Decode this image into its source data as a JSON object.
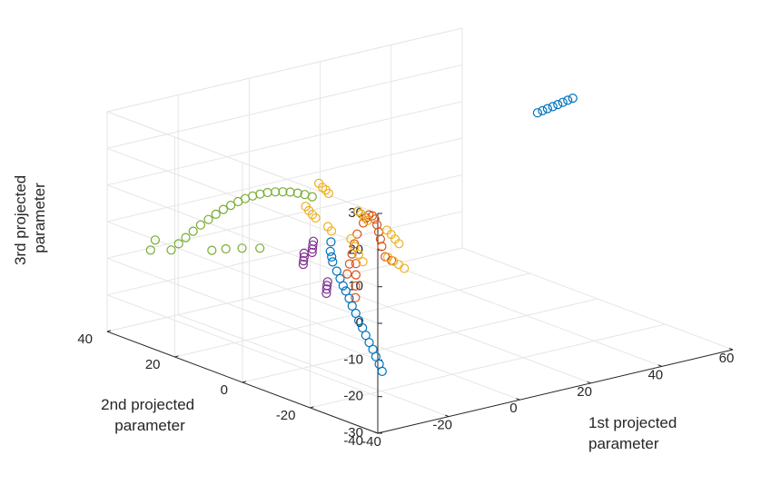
{
  "chart_data": {
    "type": "scatter",
    "title": "",
    "xlabel": [
      "1st projected",
      "parameter"
    ],
    "ylabel": [
      "2nd projected",
      "parameter"
    ],
    "zlabel": [
      "3rd projected",
      "parameter"
    ],
    "xlim": [
      -40,
      60
    ],
    "ylim": [
      -40,
      40
    ],
    "zlim": [
      -30,
      30
    ],
    "xticks": [
      -40,
      -20,
      0,
      20,
      40,
      60
    ],
    "yticks": [
      -40,
      -20,
      0,
      20,
      40
    ],
    "zticks": [
      -30,
      -20,
      -10,
      0,
      10,
      20,
      30
    ],
    "grid": true,
    "legend": "none",
    "marker": "open-circle",
    "series": [
      {
        "color": "#0072BD",
        "points": [
          [
            -12.8,
            2.4,
            1.3
          ],
          [
            -12.7,
            2.7,
            -1.4
          ],
          [
            -12.5,
            2.5,
            -2.9
          ],
          [
            -12.6,
            2.1,
            -4.1
          ],
          [
            -12.6,
            0.9,
            -6.2
          ],
          [
            -12.6,
            -0.1,
            -7.9
          ],
          [
            -12.8,
            -1.2,
            -9.4
          ],
          [
            -12.9,
            -2.1,
            -10.5
          ],
          [
            -13.2,
            -3.4,
            -12.0
          ],
          [
            -13.5,
            -4.6,
            -13.6
          ],
          [
            -13.7,
            -5.9,
            -15.1
          ],
          [
            -14.0,
            -7.1,
            -16.6
          ],
          [
            -14.2,
            -8.4,
            -18.1
          ],
          [
            -14.5,
            -9.7,
            -19.6
          ],
          [
            -14.7,
            -10.9,
            -21.1
          ],
          [
            -14.9,
            -12.2,
            -22.5
          ],
          [
            -15.2,
            -13.4,
            -24.0
          ],
          [
            -15.5,
            -14.7,
            -25.5
          ],
          [
            -15.8,
            -15.9,
            -27.0
          ],
          [
            45.0,
            2.0,
            23.5
          ],
          [
            46.5,
            2.1,
            23.7
          ],
          [
            48.0,
            2.2,
            23.9
          ],
          [
            49.5,
            2.2,
            24.1
          ],
          [
            51.0,
            2.3,
            24.3
          ],
          [
            52.5,
            2.4,
            24.5
          ],
          [
            54.0,
            2.5,
            24.7
          ],
          [
            55.5,
            2.6,
            24.9
          ]
        ]
      },
      {
        "color": "#D95319",
        "points": [
          [
            2.9,
            9.3,
            0.5
          ],
          [
            3.9,
            9.5,
            1.6
          ],
          [
            4.9,
            9.7,
            2.1
          ],
          [
            5.9,
            9.8,
            1.6
          ],
          [
            6.8,
            10.0,
            0.4
          ],
          [
            7.3,
            9.9,
            -1.2
          ],
          [
            7.5,
            9.6,
            -3.1
          ],
          [
            7.7,
            9.3,
            -5.0
          ],
          [
            7.9,
            9.1,
            -7.0
          ],
          [
            2.3,
            10.5,
            -2.8
          ],
          [
            2.0,
            11.0,
            -5.6
          ],
          [
            1.7,
            11.4,
            -8.4
          ],
          [
            1.4,
            11.8,
            -11.2
          ],
          [
            1.1,
            12.2,
            -14.0
          ],
          [
            -0.9,
            7.5,
            -9.1
          ],
          [
            -1.2,
            7.2,
            -12.0
          ],
          [
            -1.5,
            7.0,
            -14.9
          ],
          [
            -1.8,
            6.7,
            -17.9
          ],
          [
            8.5,
            8.7,
            -9.8
          ],
          [
            9.4,
            7.8,
            -10.7
          ]
        ]
      },
      {
        "color": "#EDB120",
        "points": [
          [
            3.8,
            23.4,
            6.2
          ],
          [
            5.1,
            23.7,
            4.7
          ],
          [
            6.4,
            24.1,
            3.6
          ],
          [
            7.6,
            24.5,
            2.2
          ],
          [
            -6.7,
            16.3,
            4.8
          ],
          [
            -5.4,
            16.7,
            3.2
          ],
          [
            -4.1,
            17.0,
            1.7
          ],
          [
            -2.9,
            17.3,
            0.4
          ],
          [
            9.1,
            17.4,
            -0.5
          ],
          [
            10.4,
            17.8,
            -1.7
          ],
          [
            11.6,
            18.2,
            -3.0
          ],
          [
            12.9,
            18.5,
            -4.3
          ],
          [
            14.6,
            14.6,
            -6.0
          ],
          [
            15.6,
            14.4,
            -7.3
          ],
          [
            16.5,
            14.2,
            -8.7
          ],
          [
            17.4,
            14.0,
            -10.1
          ],
          [
            1.2,
            11.2,
            -4.1
          ],
          [
            2.1,
            11.0,
            -6.4
          ],
          [
            3.0,
            10.8,
            -8.6
          ],
          [
            4.0,
            10.6,
            -10.8
          ],
          [
            7.4,
            6.8,
            -9.0
          ],
          [
            8.6,
            6.4,
            -10.2
          ],
          [
            9.8,
            6.1,
            -11.3
          ],
          [
            11.0,
            5.7,
            -12.5
          ],
          [
            -0.7,
            16.0,
            -2.0
          ],
          [
            0.4,
            16.1,
            -3.5
          ]
        ]
      },
      {
        "color": "#7E2F8E",
        "points": [
          [
            -14.7,
            5.6,
            0.8
          ],
          [
            -14.5,
            6.0,
            -0.4
          ],
          [
            -14.2,
            6.4,
            -1.7
          ],
          [
            -14.0,
            6.7,
            -2.8
          ],
          [
            -15.6,
            7.4,
            -2.9
          ],
          [
            -15.3,
            7.7,
            -4.1
          ],
          [
            -15.1,
            8.1,
            -5.3
          ],
          [
            -14.8,
            8.5,
            -6.5
          ],
          [
            -16.4,
            -0.4,
            -7.8
          ],
          [
            -16.2,
            0.0,
            -9.0
          ],
          [
            -15.9,
            0.4,
            -10.2
          ],
          [
            -15.7,
            0.7,
            -11.5
          ]
        ]
      },
      {
        "color": "#77AC30",
        "points": [
          [
            -37.3,
            23.9,
            -2.8
          ],
          [
            -35.3,
            23.8,
            -1.5
          ],
          [
            -33.4,
            23.7,
            -0.2
          ],
          [
            -31.4,
            23.6,
            1.1
          ],
          [
            -29.4,
            23.5,
            2.4
          ],
          [
            -27.4,
            23.3,
            3.5
          ],
          [
            -25.4,
            23.2,
            4.5
          ],
          [
            -23.4,
            23.1,
            5.4
          ],
          [
            -21.4,
            23.0,
            6.1
          ],
          [
            -19.4,
            22.9,
            6.7
          ],
          [
            -17.5,
            22.8,
            7.1
          ],
          [
            -15.5,
            22.7,
            7.4
          ],
          [
            -13.5,
            22.6,
            7.5
          ],
          [
            -11.5,
            22.5,
            7.5
          ],
          [
            -9.5,
            22.3,
            7.3
          ],
          [
            -7.5,
            22.2,
            6.9
          ],
          [
            -5.5,
            22.1,
            6.4
          ],
          [
            -3.5,
            22.0,
            5.7
          ],
          [
            -1.6,
            21.9,
            4.9
          ],
          [
            0.4,
            21.8,
            3.9
          ],
          [
            -29.0,
            20.6,
            -3.6
          ],
          [
            -25.9,
            19.7,
            -3.6
          ],
          [
            -22.5,
            18.5,
            -3.8
          ],
          [
            -18.7,
            17.2,
            -4.2
          ],
          [
            -41.4,
            25.7,
            -2.5
          ],
          [
            -37.8,
            28.1,
            -1.4
          ]
        ]
      }
    ]
  }
}
